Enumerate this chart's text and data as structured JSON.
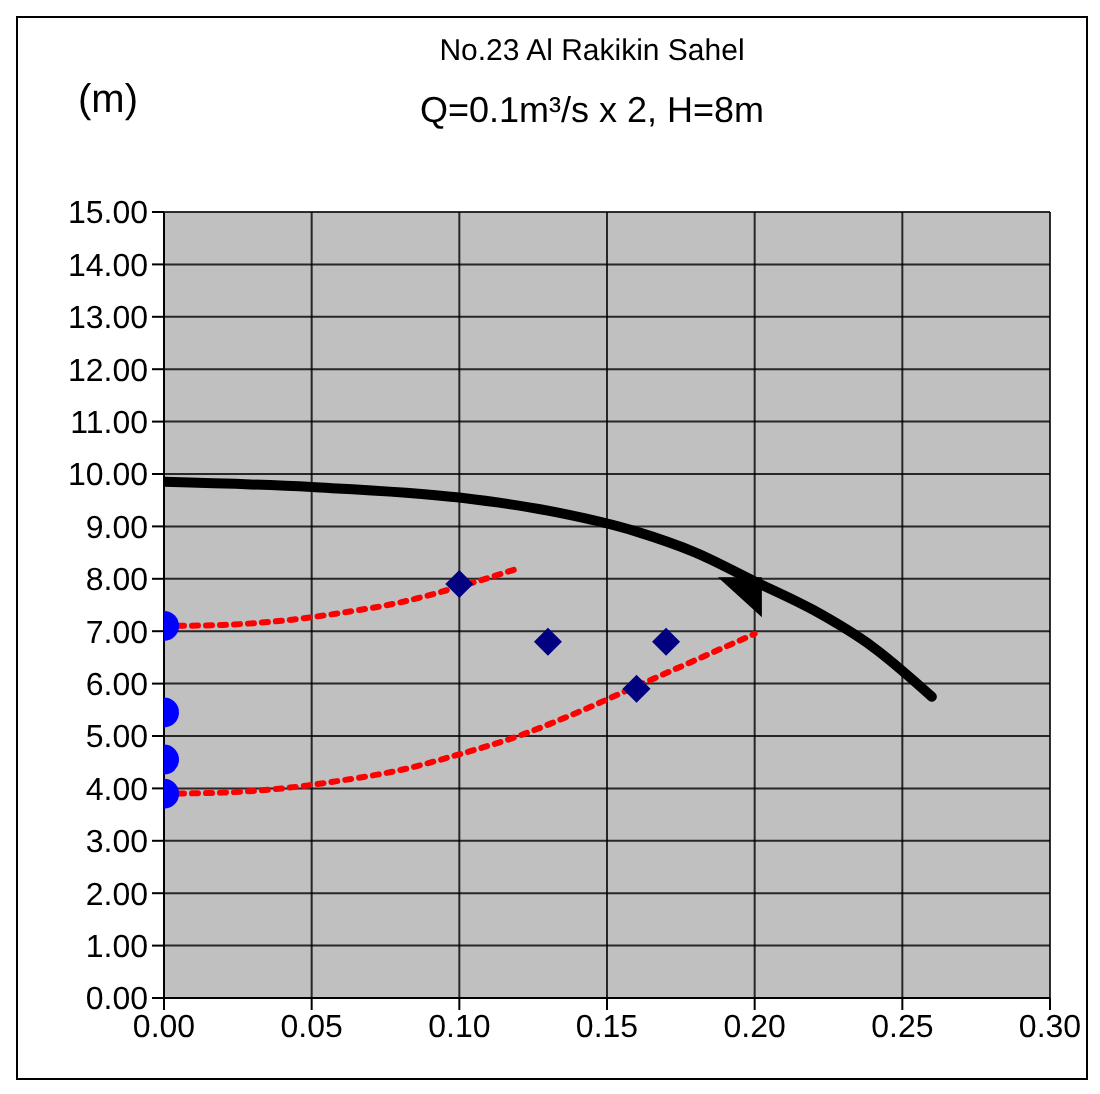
{
  "chart_data": {
    "type": "line",
    "title": "No.23 Al Rakikin Sahel",
    "subtitle": "Q=0.1m³/s x 2, H=8m",
    "ylabel": "(m)",
    "xlim": [
      0,
      0.3
    ],
    "xticks": [
      {
        "value": 0,
        "label": "0.00"
      },
      {
        "value": 0.05,
        "label": "0.05"
      },
      {
        "value": 0.1,
        "label": "0.10"
      },
      {
        "value": 0.15,
        "label": "0.15"
      },
      {
        "value": 0.2,
        "label": "0.20"
      },
      {
        "value": 0.25,
        "label": "0.25"
      },
      {
        "value": 0.3,
        "label": "0.30"
      }
    ],
    "ylim": [
      0,
      15
    ],
    "yticks": [
      {
        "value": 0,
        "label": "0.00"
      },
      {
        "value": 1,
        "label": "1.00"
      },
      {
        "value": 2,
        "label": "2.00"
      },
      {
        "value": 3,
        "label": "3.00"
      },
      {
        "value": 4,
        "label": "4.00"
      },
      {
        "value": 5,
        "label": "5.00"
      },
      {
        "value": 6,
        "label": "6.00"
      },
      {
        "value": 7,
        "label": "7.00"
      },
      {
        "value": 8,
        "label": "8.00"
      },
      {
        "value": 9,
        "label": "9.00"
      },
      {
        "value": 10,
        "label": "10.00"
      },
      {
        "value": 11,
        "label": "11.00"
      },
      {
        "value": 12,
        "label": "12.00"
      },
      {
        "value": 13,
        "label": "13.00"
      },
      {
        "value": 14,
        "label": "14.00"
      },
      {
        "value": 15,
        "label": "15.00"
      }
    ],
    "grid": true,
    "legend": false,
    "series": [
      {
        "color": "#000000",
        "line_style": "solid",
        "marker": "none",
        "x": [
          0,
          0.05,
          0.1,
          0.13,
          0.16,
          0.18,
          0.2,
          0.22,
          0.24,
          0.26
        ],
        "values": [
          9.85,
          9.75,
          9.55,
          9.3,
          8.9,
          8.5,
          7.95,
          7.4,
          6.7,
          5.75
        ]
      },
      {
        "color": "#ff0000",
        "line_style": "dotted",
        "marker": "none",
        "x": [
          0,
          0.02,
          0.04,
          0.06,
          0.08,
          0.1,
          0.12
        ],
        "values": [
          7.1,
          7.12,
          7.2,
          7.35,
          7.55,
          7.85,
          8.2
        ]
      },
      {
        "color": "#ff0000",
        "line_style": "dotted",
        "marker": "none",
        "x": [
          0,
          0.02,
          0.04,
          0.06,
          0.08,
          0.1,
          0.12,
          0.14,
          0.16,
          0.18,
          0.2
        ],
        "values": [
          3.9,
          3.92,
          4.0,
          4.15,
          4.35,
          4.65,
          5.0,
          5.45,
          5.95,
          6.45,
          6.95
        ]
      },
      {
        "type": "scatter",
        "color": "#0000ff",
        "marker": "circle",
        "x": [
          0,
          0,
          0,
          0
        ],
        "values": [
          7.1,
          5.45,
          4.55,
          3.9
        ]
      },
      {
        "type": "scatter",
        "color": "#000080",
        "marker": "diamond",
        "x": [
          0.1,
          0.13,
          0.16,
          0.17
        ],
        "values": [
          7.9,
          6.8,
          5.9,
          6.8
        ]
      },
      {
        "type": "scatter",
        "color": "#000000",
        "marker": "triangle",
        "x": [
          0.195
        ],
        "values": [
          7.65
        ]
      }
    ]
  }
}
